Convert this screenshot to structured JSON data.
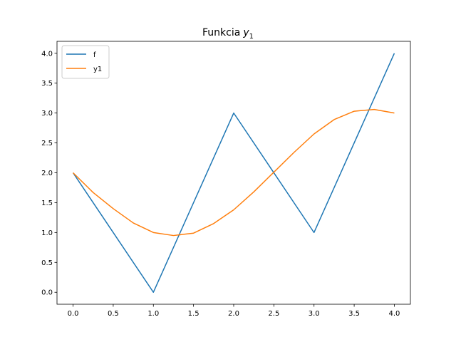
{
  "chart_data": {
    "type": "line",
    "title": "Funkcia",
    "title_symbol": "y",
    "title_subscript": "1",
    "xlabel": "",
    "ylabel": "",
    "xlim": [
      -0.2,
      4.2
    ],
    "ylim": [
      -0.2,
      4.2
    ],
    "xticks": [
      0.0,
      0.5,
      1.0,
      1.5,
      2.0,
      2.5,
      3.0,
      3.5,
      4.0
    ],
    "yticks": [
      0.0,
      0.5,
      1.0,
      1.5,
      2.0,
      2.5,
      3.0,
      3.5,
      4.0
    ],
    "xtick_labels": [
      "0.0",
      "0.5",
      "1.0",
      "1.5",
      "2.0",
      "2.5",
      "3.0",
      "3.5",
      "4.0"
    ],
    "ytick_labels": [
      "0.0",
      "0.5",
      "1.0",
      "1.5",
      "2.0",
      "2.5",
      "3.0",
      "3.5",
      "4.0"
    ],
    "grid": false,
    "legend": {
      "position": "top-left"
    },
    "series": [
      {
        "name": "f",
        "color": "#1f77b4",
        "x": [
          0,
          1,
          2,
          3,
          4
        ],
        "y": [
          2,
          0,
          3,
          1,
          4
        ]
      },
      {
        "name": "y1",
        "color": "#ff7f0e",
        "x": [
          0,
          0.25,
          0.5,
          0.75,
          1.0,
          1.25,
          1.5,
          1.75,
          2.0,
          2.25,
          2.5,
          2.75,
          3.0,
          3.25,
          3.5,
          3.75,
          4.0
        ],
        "y": [
          2.0,
          1.67,
          1.4,
          1.16,
          1.0,
          0.95,
          0.99,
          1.15,
          1.38,
          1.68,
          2.01,
          2.34,
          2.65,
          2.89,
          3.03,
          3.06,
          3.0
        ]
      }
    ]
  }
}
